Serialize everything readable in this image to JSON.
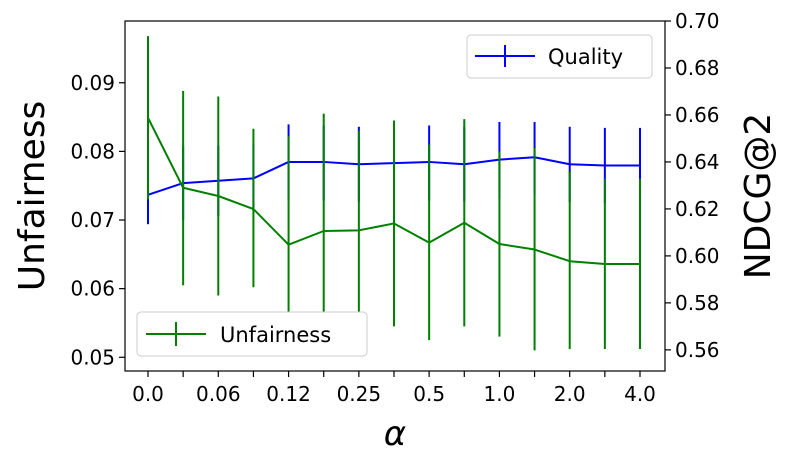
{
  "chart_data": {
    "type": "line",
    "categories": [
      "0.0",
      "",
      "0.06",
      "",
      "0.12",
      "",
      "0.25",
      "",
      "0.5",
      "",
      "1.0",
      "",
      "2.0",
      "",
      "4.0"
    ],
    "xlabel": "α",
    "left_axis": {
      "label": "Unfairness",
      "ylim": [
        0.048,
        0.099
      ],
      "ticks": [
        "0.05",
        "0.06",
        "0.07",
        "0.08",
        "0.09"
      ],
      "tick_values": [
        0.05,
        0.06,
        0.07,
        0.08,
        0.09
      ]
    },
    "right_axis": {
      "label": "NDCG@2",
      "ylim": [
        0.551,
        0.7
      ],
      "ticks": [
        "0.56",
        "0.58",
        "0.60",
        "0.62",
        "0.64",
        "0.66",
        "0.68",
        "0.70"
      ],
      "tick_values": [
        0.56,
        0.58,
        0.6,
        0.62,
        0.64,
        0.66,
        0.68,
        0.7
      ]
    },
    "series": [
      {
        "name": "Quality",
        "axis": "right",
        "color": "#0000ff",
        "values": [
          0.626,
          0.631,
          0.632,
          0.633,
          0.64,
          0.64,
          0.639,
          0.6395,
          0.64,
          0.639,
          0.641,
          0.642,
          0.639,
          0.6385,
          0.6385
        ],
        "err_low": [
          0.6135,
          0.6155,
          0.617,
          0.619,
          0.6235,
          0.6235,
          0.623,
          0.6235,
          0.6235,
          0.623,
          0.6245,
          0.626,
          0.623,
          0.6225,
          0.6225
        ],
        "err_high": [
          0.639,
          0.6465,
          0.647,
          0.6475,
          0.656,
          0.6555,
          0.655,
          0.6555,
          0.6555,
          0.655,
          0.657,
          0.657,
          0.655,
          0.6545,
          0.6545
        ]
      },
      {
        "name": "Unfairness",
        "axis": "left",
        "color": "#008000",
        "values": [
          0.0849,
          0.0747,
          0.0735,
          0.0716,
          0.0664,
          0.0684,
          0.0685,
          0.0695,
          0.0667,
          0.0696,
          0.0665,
          0.0657,
          0.064,
          0.0636,
          0.0636
        ],
        "err_low": [
          0.073,
          0.0605,
          0.059,
          0.0602,
          0.0505,
          0.051,
          0.054,
          0.0545,
          0.0525,
          0.0545,
          0.053,
          0.051,
          0.0512,
          0.0512,
          0.0512
        ],
        "err_high": [
          0.0968,
          0.0888,
          0.088,
          0.0833,
          0.0822,
          0.0855,
          0.083,
          0.0845,
          0.081,
          0.0847,
          0.08,
          0.0805,
          0.077,
          0.076,
          0.076
        ]
      }
    ],
    "legends": [
      {
        "label": "Quality",
        "placement": "upper right"
      },
      {
        "label": "Unfairness",
        "placement": "lower left"
      }
    ],
    "grid": false
  }
}
